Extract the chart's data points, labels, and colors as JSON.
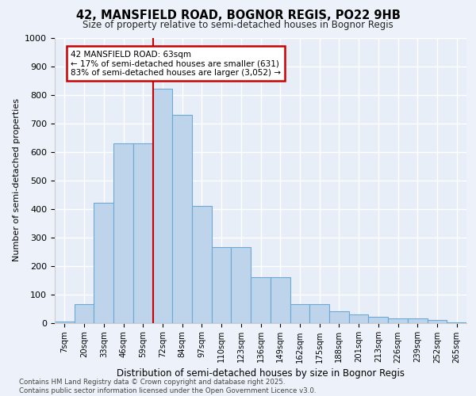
{
  "title1": "42, MANSFIELD ROAD, BOGNOR REGIS, PO22 9HB",
  "title2": "Size of property relative to semi-detached houses in Bognor Regis",
  "xlabel": "Distribution of semi-detached houses by size in Bognor Regis",
  "ylabel": "Number of semi-detached properties",
  "categories": [
    "7sqm",
    "20sqm",
    "33sqm",
    "46sqm",
    "59sqm",
    "72sqm",
    "84sqm",
    "97sqm",
    "110sqm",
    "123sqm",
    "136sqm",
    "149sqm",
    "162sqm",
    "175sqm",
    "188sqm",
    "201sqm",
    "213sqm",
    "226sqm",
    "239sqm",
    "252sqm",
    "265sqm"
  ],
  "values": [
    5,
    65,
    420,
    630,
    630,
    820,
    730,
    410,
    265,
    265,
    160,
    160,
    65,
    65,
    40,
    30,
    20,
    15,
    15,
    10,
    2
  ],
  "bar_color": "#bdd4eb",
  "bar_edge_color": "#6aaad4",
  "red_line_x": 4.5,
  "annotation_text": "42 MANSFIELD ROAD: 63sqm\n← 17% of semi-detached houses are smaller (631)\n83% of semi-detached houses are larger (3,052) →",
  "annotation_box_color": "#ffffff",
  "annotation_box_edge": "#cc0000",
  "red_line_color": "#cc0000",
  "ylim": [
    0,
    1000
  ],
  "yticks": [
    0,
    100,
    200,
    300,
    400,
    500,
    600,
    700,
    800,
    900,
    1000
  ],
  "footer1": "Contains HM Land Registry data © Crown copyright and database right 2025.",
  "footer2": "Contains public sector information licensed under the Open Government Licence v3.0.",
  "bg_color": "#edf2fa",
  "plot_bg_color": "#e8eef8"
}
